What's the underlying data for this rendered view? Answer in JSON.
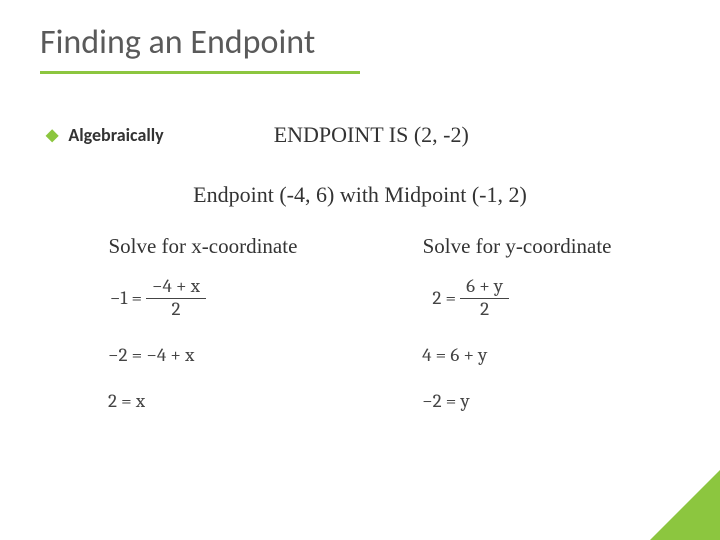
{
  "title": "Finding an Endpoint",
  "bullet_label": "Algebraically",
  "answer": "ENDPOINT IS (2, -2)",
  "problem": "Endpoint (-4, 6) with Midpoint (-1, 2)",
  "columns": {
    "left": {
      "heading": "Solve for x-coordinate",
      "eq1_lhs": "−1 =",
      "eq1_num": "−4 + x",
      "eq1_den": "2",
      "eq2": "−2 = −4 + x",
      "eq3": "2 = x"
    },
    "right": {
      "heading": "Solve for y-coordinate",
      "eq1_lhs": "2 =",
      "eq1_num": "6 + y",
      "eq1_den": "2",
      "eq2": "4 = 6 + y",
      "eq3": "−2 = y"
    }
  },
  "colors": {
    "accent": "#8cc63f",
    "title": "#5a5a5a",
    "text": "#333333",
    "eq": "#444444",
    "background": "#ffffff"
  },
  "typography": {
    "title_fontsize": 34,
    "body_fontsize": 22,
    "bullet_fontsize": 18,
    "eq_fontsize": 19
  }
}
